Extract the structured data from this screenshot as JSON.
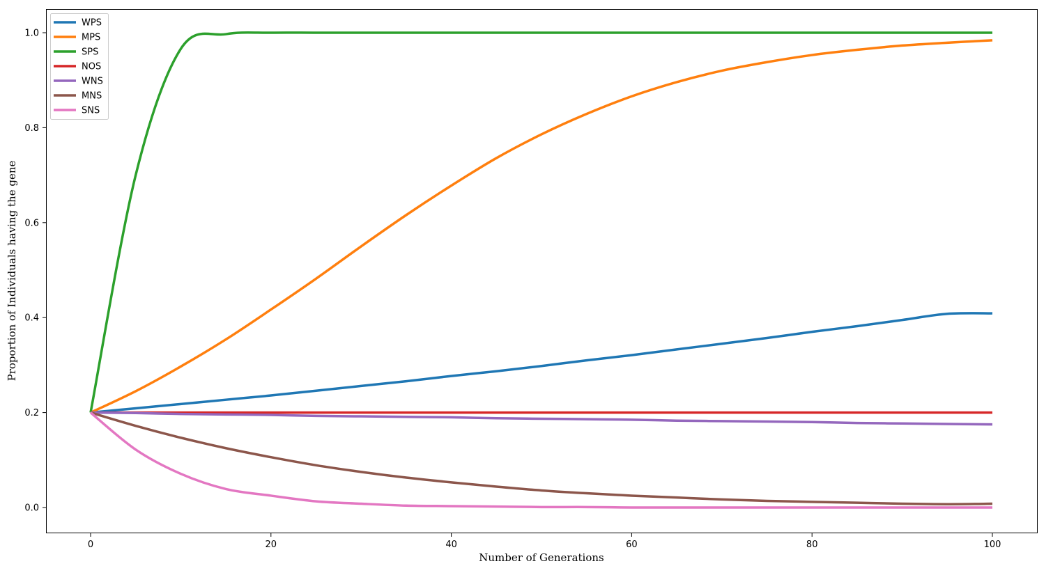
{
  "chart_data": {
    "type": "line",
    "title": "",
    "xlabel": "Number of Generations",
    "ylabel": "Proportion of Individuals having the gene",
    "xlim": [
      -5,
      105
    ],
    "ylim": [
      -0.05,
      1.05
    ],
    "xticks": [
      0,
      20,
      40,
      60,
      80,
      100
    ],
    "xtick_labels": [
      "0",
      "20",
      "40",
      "60",
      "80",
      "100"
    ],
    "yticks": [
      0.0,
      0.2,
      0.4,
      0.6,
      0.8,
      1.0
    ],
    "ytick_labels": [
      "0.0",
      "0.2",
      "0.4",
      "0.6",
      "0.8",
      "1.0"
    ],
    "grid": false,
    "legend_position": "upper left",
    "x": [
      0,
      5,
      10,
      15,
      20,
      25,
      30,
      35,
      40,
      45,
      50,
      55,
      60,
      65,
      70,
      75,
      80,
      85,
      90,
      95,
      100
    ],
    "series": [
      {
        "name": "WPS",
        "color": "#1f77b4",
        "values": [
          0.2,
          0.209,
          0.218,
          0.227,
          0.236,
          0.246,
          0.256,
          0.266,
          0.277,
          0.287,
          0.298,
          0.31,
          0.321,
          0.333,
          0.345,
          0.357,
          0.37,
          0.382,
          0.395,
          0.408,
          0.409
        ]
      },
      {
        "name": "MPS",
        "color": "#ff7f0e",
        "values": [
          0.2,
          0.245,
          0.297,
          0.354,
          0.417,
          0.482,
          0.55,
          0.616,
          0.678,
          0.736,
          0.786,
          0.829,
          0.866,
          0.896,
          0.92,
          0.938,
          0.953,
          0.964,
          0.973,
          0.979,
          0.984
        ]
      },
      {
        "name": "SPS",
        "color": "#2ca02c",
        "values": [
          0.2,
          0.7,
          0.966,
          0.997,
          1.0,
          1.0,
          1.0,
          1.0,
          1.0,
          1.0,
          1.0,
          1.0,
          1.0,
          1.0,
          1.0,
          1.0,
          1.0,
          1.0,
          1.0,
          1.0,
          1.0
        ]
      },
      {
        "name": "NOS",
        "color": "#d62728",
        "values": [
          0.2,
          0.2,
          0.2,
          0.2,
          0.2,
          0.2,
          0.2,
          0.2,
          0.2,
          0.2,
          0.2,
          0.2,
          0.2,
          0.2,
          0.2,
          0.2,
          0.2,
          0.2,
          0.2,
          0.2,
          0.2
        ]
      },
      {
        "name": "WNS",
        "color": "#9467bd",
        "values": [
          0.2,
          0.199,
          0.197,
          0.196,
          0.195,
          0.193,
          0.192,
          0.191,
          0.19,
          0.188,
          0.187,
          0.186,
          0.185,
          0.183,
          0.182,
          0.181,
          0.18,
          0.178,
          0.177,
          0.176,
          0.175
        ]
      },
      {
        "name": "MNS",
        "color": "#8c564b",
        "values": [
          0.2,
          0.172,
          0.147,
          0.125,
          0.106,
          0.089,
          0.075,
          0.063,
          0.053,
          0.044,
          0.036,
          0.03,
          0.025,
          0.021,
          0.017,
          0.014,
          0.012,
          0.01,
          0.008,
          0.007,
          0.008
        ]
      },
      {
        "name": "SNS",
        "color": "#e377c2",
        "values": [
          0.2,
          0.122,
          0.071,
          0.039,
          0.025,
          0.013,
          0.008,
          0.004,
          0.003,
          0.002,
          0.001,
          0.001,
          0.0,
          0.0,
          0.0,
          0.0,
          0.0,
          0.0,
          0.0,
          0.0,
          0.0
        ]
      }
    ]
  },
  "legend": {
    "items": [
      {
        "label": "WPS",
        "color": "#1f77b4"
      },
      {
        "label": "MPS",
        "color": "#ff7f0e"
      },
      {
        "label": "SPS",
        "color": "#2ca02c"
      },
      {
        "label": "NOS",
        "color": "#d62728"
      },
      {
        "label": "WNS",
        "color": "#9467bd"
      },
      {
        "label": "MNS",
        "color": "#8c564b"
      },
      {
        "label": "SNS",
        "color": "#e377c2"
      }
    ]
  }
}
